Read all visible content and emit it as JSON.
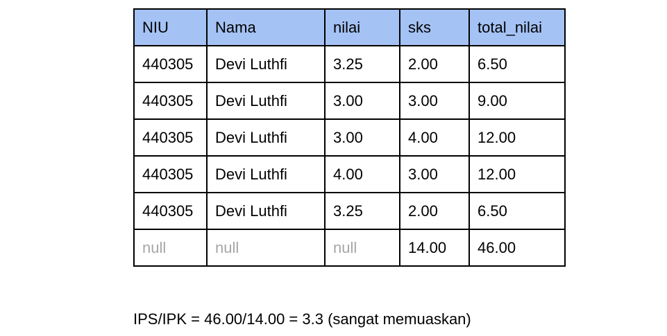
{
  "table": {
    "header_color": "#a4c2f4",
    "null_text_color": "#a6a6a6",
    "columns": [
      "NIU",
      "Nama",
      "nilai",
      "sks",
      "total_nilai"
    ],
    "rows": [
      [
        "440305",
        "Devi Luthfi",
        "3.25",
        "2.00",
        "6.50"
      ],
      [
        "440305",
        "Devi Luthfi",
        "3.00",
        "3.00",
        "9.00"
      ],
      [
        "440305",
        "Devi Luthfi",
        "3.00",
        "4.00",
        "12.00"
      ],
      [
        "440305",
        "Devi Luthfi",
        "4.00",
        "3.00",
        "12.00"
      ],
      [
        "440305",
        "Devi Luthfi",
        "3.25",
        "2.00",
        "6.50"
      ],
      [
        "null",
        "null",
        "null",
        "14.00",
        "46.00"
      ]
    ]
  },
  "summary": {
    "text": "IPS/IPK = 46.00/14.00 = 3.3 (sangat memuaskan)"
  }
}
